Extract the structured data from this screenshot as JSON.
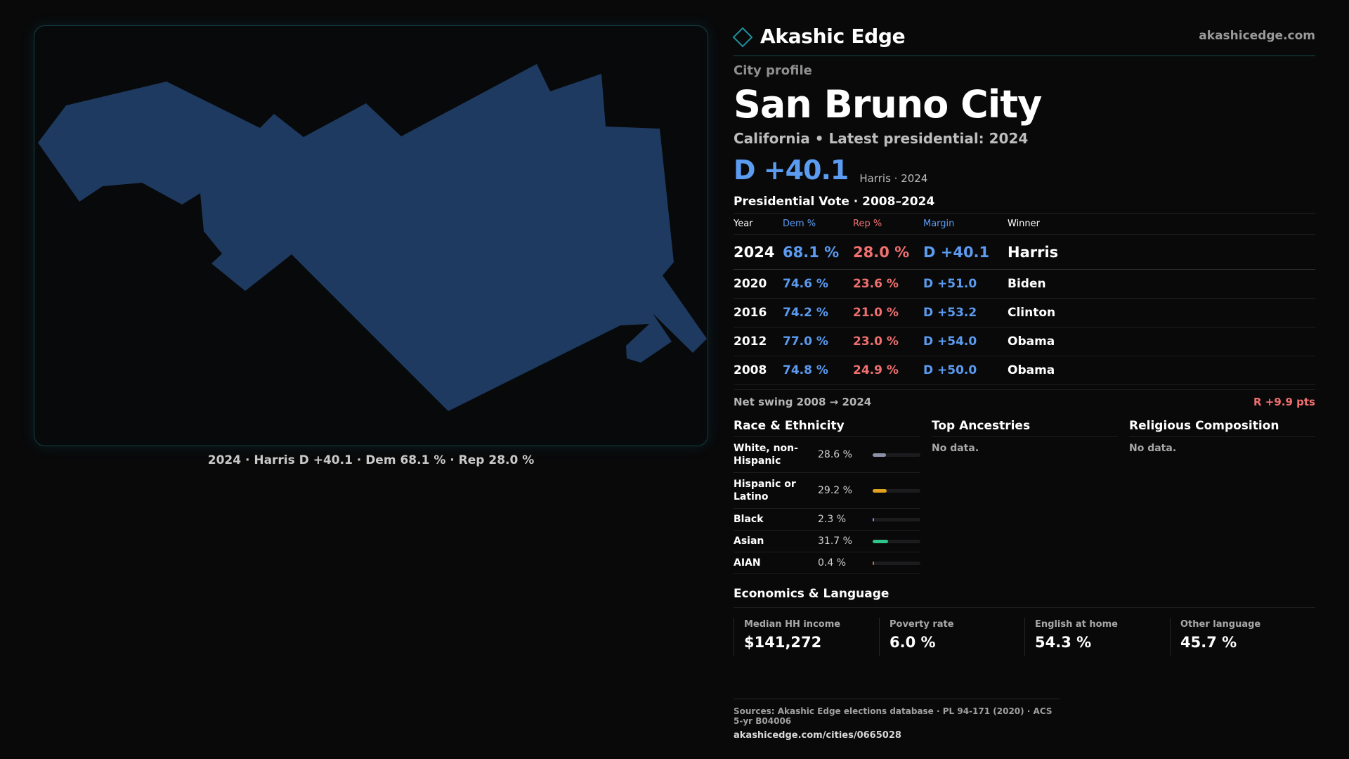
{
  "brand": {
    "name": "Akashic Edge",
    "url": "akashicedge.com"
  },
  "profile": {
    "kicker": "City profile",
    "city": "San Bruno City",
    "subtitle": "California • Latest presidential: 2024",
    "headline_margin": "D +40.1",
    "headline_note": "Harris · 2024"
  },
  "map": {
    "caption": "2024 · Harris D +40.1 · Dem 68.1 % · Rep 28.0 %",
    "fill_color": "#1e3a60"
  },
  "vote": {
    "title": "Presidential Vote · 2008–2024",
    "headers": {
      "year": "Year",
      "dem": "Dem %",
      "rep": "Rep %",
      "margin": "Margin",
      "winner": "Winner"
    },
    "rows": [
      {
        "year": "2024",
        "dem": "68.1 %",
        "rep": "28.0 %",
        "margin": "D +40.1",
        "winner": "Harris"
      },
      {
        "year": "2020",
        "dem": "74.6 %",
        "rep": "23.6 %",
        "margin": "D +51.0",
        "winner": "Biden"
      },
      {
        "year": "2016",
        "dem": "74.2 %",
        "rep": "21.0 %",
        "margin": "D +53.2",
        "winner": "Clinton"
      },
      {
        "year": "2012",
        "dem": "77.0 %",
        "rep": "23.0 %",
        "margin": "D +54.0",
        "winner": "Obama"
      },
      {
        "year": "2008",
        "dem": "74.8 %",
        "rep": "24.9 %",
        "margin": "D +50.0",
        "winner": "Obama"
      }
    ],
    "swing_label": "Net swing 2008 → 2024",
    "swing_value": "R +9.9 pts"
  },
  "race": {
    "title": "Race & Ethnicity",
    "rows": [
      {
        "name": "White, non-Hispanic",
        "pct": "28.6 %",
        "share": 0.286,
        "color": "#8a93a6"
      },
      {
        "name": "Hispanic or Latino",
        "pct": "29.2 %",
        "share": 0.292,
        "color": "#e0a020"
      },
      {
        "name": "Black",
        "pct": "2.3 %",
        "share": 0.023,
        "color": "#8a7ce0"
      },
      {
        "name": "Asian",
        "pct": "31.7 %",
        "share": 0.317,
        "color": "#2ec48a"
      },
      {
        "name": "AIAN",
        "pct": "0.4 %",
        "share": 0.004,
        "color": "#d07030"
      }
    ]
  },
  "ancestries": {
    "title": "Top Ancestries",
    "empty": "No data."
  },
  "religion": {
    "title": "Religious Composition",
    "empty": "No data."
  },
  "economics": {
    "title": "Economics & Language",
    "cells": [
      {
        "label": "Median HH income",
        "value": "$141,272"
      },
      {
        "label": "Poverty rate",
        "value": "6.0 %"
      },
      {
        "label": "English at home",
        "value": "54.3 %"
      },
      {
        "label": "Other language",
        "value": "45.7 %"
      }
    ]
  },
  "sources": {
    "line": "Sources: Akashic Edge elections database · PL 94-171 (2020) · ACS 5-yr B04006",
    "url": "akashicedge.com/cities/0665028"
  }
}
